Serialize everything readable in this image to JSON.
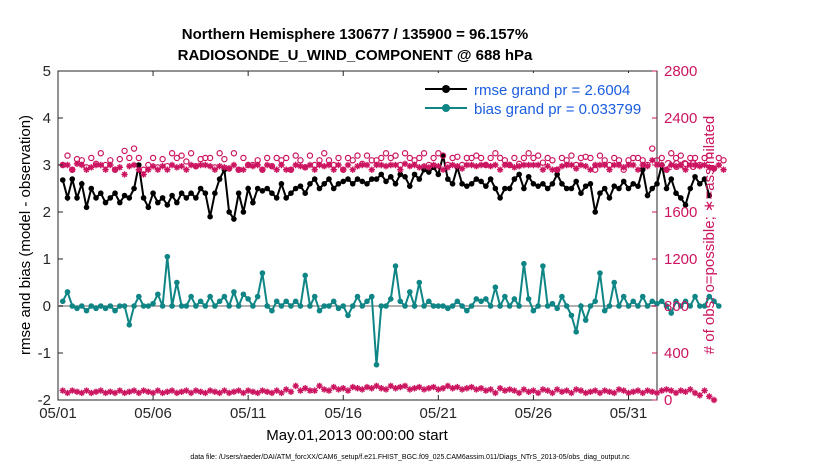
{
  "chart_data": {
    "type": "line",
    "title_line1": "Northern Hemisphere 130677 / 135900 = 96.157%",
    "title_line2": "RADIOSONDE_U_WIND_COMPONENT @ 688 hPa",
    "xlabel": "May.01,2013 00:00:00 start",
    "ylabel_left": "rmse and bias (model - observation)",
    "ylabel_right": "# of obs: o=possible; ∗=assimilated",
    "footer": "data file: /Users/raeder/DAI/ATM_forcXX/CAM6_setup/f.e21.FHIST_BGC.f09_025.CAM6assim.011/Diags_NTrS_2013-05/obs_diag_output.nc",
    "xlim": [
      0,
      31.5
    ],
    "ylim_left": [
      -2,
      5
    ],
    "ylim_right": [
      0,
      2800
    ],
    "x_ticks": [
      0,
      5,
      10,
      15,
      20,
      25,
      30
    ],
    "x_tick_labels": [
      "05/01",
      "05/06",
      "05/11",
      "05/16",
      "05/21",
      "05/26",
      "05/31"
    ],
    "y_left_ticks": [
      -2,
      -1,
      0,
      1,
      2,
      3,
      4,
      5
    ],
    "y_left_tick_labels": [
      "-2",
      "-1",
      "0",
      "1",
      "2",
      "3",
      "4",
      "5"
    ],
    "y_right_ticks": [
      0,
      400,
      800,
      1200,
      1600,
      2000,
      2400,
      2800
    ],
    "y_right_tick_labels": [
      "0",
      "400",
      "800",
      "1200",
      "1600",
      "2000",
      "2400",
      "2800"
    ],
    "x_start": 0.25,
    "x_step": 0.25,
    "series": [
      {
        "name": "rmse",
        "legend": "rmse grand pr = 2.6004",
        "color": "#000000",
        "axis": "left",
        "values": [
          2.68,
          2.3,
          2.7,
          2.3,
          2.6,
          2.1,
          2.5,
          2.3,
          2.4,
          2.2,
          2.3,
          2.4,
          2.2,
          2.35,
          2.3,
          2.5,
          3.0,
          2.3,
          2.1,
          2.4,
          2.2,
          2.3,
          2.15,
          2.35,
          2.2,
          2.4,
          2.3,
          2.4,
          2.3,
          2.5,
          2.4,
          1.9,
          2.4,
          2.7,
          2.9,
          2.0,
          1.85,
          2.4,
          2.0,
          2.5,
          2.2,
          2.5,
          2.45,
          2.5,
          2.4,
          2.3,
          2.6,
          2.3,
          2.4,
          2.5,
          2.55,
          2.4,
          2.6,
          2.7,
          2.5,
          2.6,
          2.7,
          2.5,
          2.6,
          2.65,
          2.7,
          2.6,
          2.7,
          2.65,
          2.6,
          2.7,
          2.7,
          2.8,
          2.65,
          2.75,
          2.6,
          2.8,
          2.75,
          2.55,
          2.8,
          2.7,
          2.9,
          2.85,
          2.95,
          2.8,
          3.2,
          2.7,
          2.6,
          2.95,
          2.6,
          2.55,
          2.6,
          2.7,
          2.65,
          2.55,
          2.7,
          2.5,
          2.3,
          2.5,
          2.5,
          2.7,
          2.8,
          2.5,
          2.75,
          2.6,
          2.55,
          2.6,
          2.5,
          2.6,
          2.8,
          2.6,
          2.5,
          2.5,
          2.65,
          2.4,
          2.55,
          2.6,
          2.0,
          2.4,
          2.5,
          2.3,
          2.55,
          2.5,
          2.65,
          2.5,
          2.6,
          2.55,
          2.9,
          2.35,
          2.5,
          2.6,
          3.0,
          2.5,
          2.7,
          2.4,
          2.3,
          2.15,
          2.5,
          2.75,
          2.6,
          2.7,
          2.35
        ]
      },
      {
        "name": "bias",
        "legend": "bias grand pr = 0.033799",
        "color": "#0f8585",
        "axis": "left",
        "values": [
          0.1,
          0.3,
          0.0,
          -0.05,
          0.0,
          -0.1,
          0.0,
          -0.05,
          0.0,
          -0.05,
          0.0,
          -0.1,
          0.0,
          0.0,
          -0.4,
          0.0,
          0.2,
          0.0,
          0.0,
          0.05,
          0.25,
          0.0,
          1.05,
          0.0,
          0.5,
          0.0,
          0.0,
          0.2,
          0.0,
          0.1,
          0.0,
          0.2,
          0.0,
          0.1,
          0.2,
          0.0,
          0.3,
          0.0,
          0.25,
          0.15,
          0.0,
          0.2,
          0.7,
          0.0,
          -0.1,
          0.1,
          0.0,
          0.1,
          0.0,
          0.1,
          0.0,
          0.65,
          0.0,
          0.2,
          -0.1,
          0.0,
          0.0,
          0.1,
          -0.05,
          0.0,
          -0.2,
          0.0,
          0.2,
          0.0,
          0.1,
          0.2,
          -1.25,
          0.0,
          0.0,
          0.15,
          0.85,
          0.1,
          0.0,
          0.3,
          0.0,
          0.5,
          0.0,
          0.1,
          0.0,
          0.0,
          0.0,
          -0.05,
          0.0,
          0.1,
          0.0,
          -0.1,
          0.0,
          0.15,
          0.1,
          0.15,
          0.0,
          0.4,
          0.0,
          0.2,
          0.0,
          0.15,
          0.0,
          0.9,
          0.15,
          -0.1,
          0.0,
          0.85,
          0.0,
          0.05,
          -0.05,
          0.2,
          0.0,
          -0.2,
          -0.55,
          0.0,
          -0.3,
          0.0,
          0.1,
          0.7,
          -0.1,
          0.0,
          0.5,
          0.0,
          0.2,
          0.0,
          0.1,
          0.0,
          0.2,
          0.0,
          0.1,
          0.05,
          0.1,
          0.0,
          -0.15,
          0.1,
          0.0,
          0.1,
          0.0,
          0.2,
          0.0,
          0.0,
          0.2,
          0.1,
          0.0
        ]
      },
      {
        "name": "possible",
        "color": "#cc1560",
        "axis": "right",
        "marker": "o",
        "values": [
          2000,
          2080,
          1960,
          2050,
          2040,
          1980,
          2060,
          2010,
          2100,
          2000,
          2040,
          1960,
          2050,
          2120,
          2060,
          2140,
          2060,
          1960,
          2000,
          2060,
          1980,
          2050,
          1990,
          2100,
          2060,
          2080,
          2030,
          2100,
          1990,
          2050,
          2060,
          2060,
          1980,
          2100,
          2050,
          1970,
          2100,
          1960,
          2060,
          2000,
          2000,
          2040,
          1960,
          2060,
          1990,
          2060,
          2040,
          2060,
          1960,
          2080,
          2040,
          1980,
          2080,
          2000,
          2040,
          2100,
          2040,
          2000,
          2060,
          1960,
          2060,
          2040,
          2080,
          2010,
          2080,
          2040,
          2040,
          2060,
          2100,
          2060,
          2080,
          2000,
          2100,
          2060,
          2040,
          2060,
          2100,
          2000,
          2060,
          2100,
          2080,
          2000,
          2060,
          2070,
          2000,
          2060,
          2060,
          2080,
          2060,
          2000,
          2060,
          2100,
          2060,
          2040,
          2000,
          2060,
          2010,
          2060,
          2100,
          2060,
          2080,
          2020,
          2060,
          2040,
          1960,
          2060,
          2040,
          2080,
          2000,
          2060,
          2070,
          2060,
          1960,
          2080,
          2040,
          2000,
          2060,
          2040,
          1960,
          2040,
          2060,
          2060,
          2040,
          2000,
          2140,
          2040,
          2060,
          1960,
          2100,
          2060,
          2080,
          2010,
          2060,
          2060,
          2000,
          2060,
          2080,
          1970,
          2060,
          2040
        ]
      },
      {
        "name": "assimilated",
        "color": "#cc1560",
        "axis": "right",
        "marker": "*",
        "values": [
          2000,
          2000,
          1960,
          2010,
          2000,
          1960,
          1980,
          2000,
          2000,
          1960,
          2000,
          1960,
          1980,
          1920,
          1990,
          2000,
          1960,
          1920,
          1960,
          1990,
          1960,
          1990,
          1960,
          2000,
          1980,
          1990,
          1960,
          2000,
          1990,
          2000,
          2000,
          1990,
          1960,
          1990,
          1980,
          1970,
          2000,
          1960,
          1960,
          2000,
          1990,
          2000,
          1960,
          2000,
          1990,
          1960,
          2000,
          1960,
          1960,
          2000,
          1990,
          1980,
          2000,
          1960,
          2000,
          1990,
          2000,
          1960,
          2000,
          1960,
          2000,
          1960,
          1990,
          2000,
          2000,
          1960,
          2000,
          2000,
          1990,
          2000,
          2000,
          1960,
          2010,
          1990,
          2000,
          1980,
          1990,
          1980,
          2000,
          1990,
          1960,
          1980,
          2000,
          1990,
          1970,
          2000,
          2000,
          1990,
          2000,
          2000,
          1990,
          2000,
          1960,
          2000,
          2000,
          1980,
          1990,
          2000,
          2000,
          2000,
          2000,
          1960,
          1990,
          1960,
          1960,
          1990,
          2000,
          2000,
          1970,
          2000,
          1990,
          1960,
          2000,
          2000,
          2000,
          1960,
          2000,
          2000,
          1980,
          2000,
          2000,
          1960,
          2000,
          1990,
          2040,
          2000,
          2000,
          1960,
          2000,
          1990,
          2000,
          1960,
          2000,
          2000,
          1990,
          2000,
          1980,
          1970,
          2000,
          1960
        ]
      },
      {
        "name": "assimilated_low",
        "color": "#cc1560",
        "axis": "right",
        "marker": "*",
        "values": [
          80,
          60,
          80,
          70,
          60,
          80,
          60,
          70,
          80,
          60,
          70,
          60,
          80,
          60,
          70,
          80,
          60,
          80,
          70,
          60,
          80,
          60,
          70,
          80,
          60,
          70,
          80,
          60,
          80,
          70,
          60,
          80,
          70,
          60,
          80,
          60,
          70,
          80,
          60,
          80,
          70,
          60,
          80,
          70,
          60,
          80,
          60,
          90,
          70,
          120,
          80,
          100,
          80,
          80,
          120,
          90,
          80,
          110,
          90,
          100,
          80,
          110,
          100,
          90,
          110,
          100,
          120,
          100,
          90,
          120,
          100,
          110,
          120,
          90,
          100,
          110,
          90,
          100,
          110,
          90,
          100,
          120,
          100,
          110,
          90,
          100,
          110,
          90,
          100,
          80,
          90,
          60,
          100,
          80,
          90,
          80,
          60,
          90,
          70,
          80,
          60,
          90,
          80,
          60,
          90,
          70,
          80,
          60,
          90,
          80,
          60,
          70,
          80,
          60,
          80,
          70,
          60,
          90,
          80,
          60,
          70,
          80,
          60,
          80,
          70,
          60,
          80,
          90,
          80,
          60,
          80,
          70,
          90,
          60,
          40,
          80,
          30,
          0
        ]
      }
    ]
  }
}
